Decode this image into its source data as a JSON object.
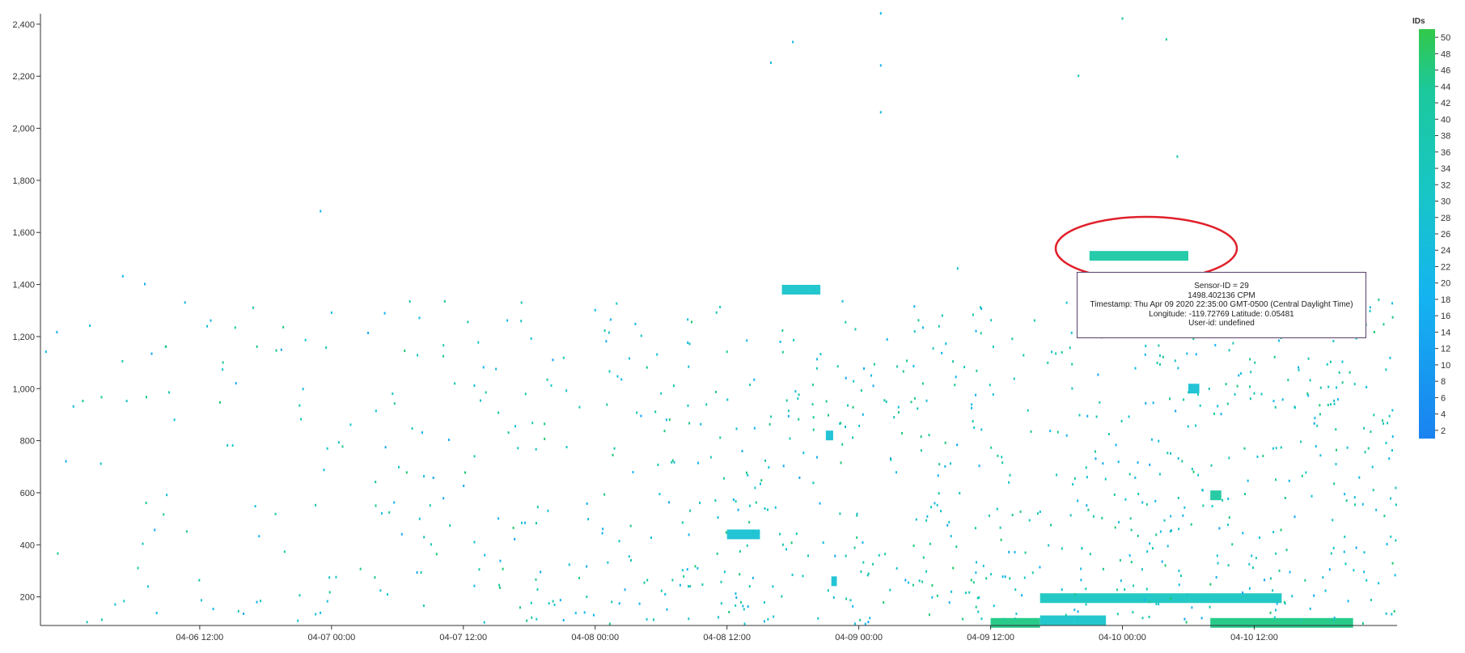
{
  "chart_data": {
    "type": "scatter",
    "title": "",
    "xlabel": "",
    "ylabel": "",
    "x_range": [
      "2020-04-05 21:30",
      "2020-04-11 01:00"
    ],
    "ylim": [
      90,
      2440
    ],
    "y_ticks": [
      200,
      400,
      600,
      800,
      1000,
      1200,
      1400,
      1600,
      1800,
      2000,
      2200,
      2400
    ],
    "y_tick_labels": [
      "200",
      "400",
      "600",
      "800",
      "1,000",
      "1,200",
      "1,400",
      "1,600",
      "1,800",
      "2,000",
      "2,200",
      "2,400"
    ],
    "x_ticks": [
      "2020-04-06 12:00",
      "2020-04-07 00:00",
      "2020-04-07 12:00",
      "2020-04-08 00:00",
      "2020-04-08 12:00",
      "2020-04-09 00:00",
      "2020-04-09 12:00",
      "2020-04-10 00:00",
      "2020-04-10 12:00"
    ],
    "x_tick_labels": [
      "04-06 12:00",
      "04-07 00:00",
      "04-07 12:00",
      "04-08 00:00",
      "04-08 12:00",
      "04-09 00:00",
      "04-09 12:00",
      "04-10 00:00",
      "04-10 12:00"
    ],
    "grid": false,
    "color_scale": {
      "title": "IDs",
      "min": 1,
      "max": 51,
      "colors": [
        "#1a82f0",
        "#14b4f0",
        "#18c6c6",
        "#1cc89c",
        "#20c850",
        "#32c84a"
      ],
      "tick_values": [
        2,
        4,
        6,
        8,
        10,
        12,
        14,
        16,
        18,
        20,
        22,
        24,
        26,
        28,
        30,
        32,
        34,
        36,
        38,
        40,
        42,
        44,
        46,
        48,
        50
      ]
    },
    "points_note_free_scatter": [
      {
        "x": "2020-04-05 22:00",
        "y": 1140,
        "id": 12
      },
      {
        "x": "2020-04-05 23:00",
        "y": 1215,
        "id": 10
      },
      {
        "x": "2020-04-06 00:30",
        "y": 930,
        "id": 14
      },
      {
        "x": "2020-04-06 02:00",
        "y": 1240,
        "id": 16
      },
      {
        "x": "2020-04-06 03:00",
        "y": 710,
        "id": 20
      },
      {
        "x": "2020-04-06 05:00",
        "y": 1430,
        "id": 12
      },
      {
        "x": "2020-04-06 07:00",
        "y": 1400,
        "id": 10
      },
      {
        "x": "2020-04-06 09:00",
        "y": 590,
        "id": 18
      },
      {
        "x": "2020-04-06 13:00",
        "y": 1260,
        "id": 14
      },
      {
        "x": "2020-04-06 15:00",
        "y": 780,
        "id": 22
      },
      {
        "x": "2020-04-06 23:00",
        "y": 1680,
        "id": 12
      },
      {
        "x": "2020-04-07 00:00",
        "y": 1290,
        "id": 16
      },
      {
        "x": "2020-04-07 04:00",
        "y": 640,
        "id": 30
      },
      {
        "x": "2020-04-07 08:00",
        "y": 1270,
        "id": 14
      },
      {
        "x": "2020-04-07 13:00",
        "y": 1010,
        "id": 18
      },
      {
        "x": "2020-04-07 16:00",
        "y": 1260,
        "id": 12
      },
      {
        "x": "2020-04-07 20:00",
        "y": 1010,
        "id": 20
      },
      {
        "x": "2020-04-08 00:00",
        "y": 1300,
        "id": 16
      },
      {
        "x": "2020-04-08 06:00",
        "y": 980,
        "id": 24
      },
      {
        "x": "2020-04-08 12:00",
        "y": 1140,
        "id": 30
      },
      {
        "x": "2020-04-08 16:00",
        "y": 2250,
        "id": 14
      },
      {
        "x": "2020-04-08 18:00",
        "y": 2330,
        "id": 12
      },
      {
        "x": "2020-04-08 20:00",
        "y": 1380,
        "id": 20
      },
      {
        "x": "2020-04-09 02:00",
        "y": 2440,
        "id": 12
      },
      {
        "x": "2020-04-09 02:00",
        "y": 2240,
        "id": 10
      },
      {
        "x": "2020-04-09 02:00",
        "y": 2060,
        "id": 14
      },
      {
        "x": "2020-04-09 09:00",
        "y": 1460,
        "id": 18
      },
      {
        "x": "2020-04-09 16:00",
        "y": 1260,
        "id": 26
      },
      {
        "x": "2020-04-09 20:00",
        "y": 2200,
        "id": 30
      },
      {
        "x": "2020-04-10 00:00",
        "y": 2420,
        "id": 28
      },
      {
        "x": "2020-04-10 04:00",
        "y": 2340,
        "id": 30
      },
      {
        "x": "2020-04-10 05:00",
        "y": 1890,
        "id": 26
      },
      {
        "x": "2020-04-10 12:00",
        "y": 980,
        "id": 28
      },
      {
        "x": "2020-04-10 18:00",
        "y": 900,
        "id": 30
      }
    ],
    "dense_bands": [
      {
        "x_start": "2020-04-08 12:00",
        "x_end": "2020-04-08 15:00",
        "y": 440,
        "id": 18
      },
      {
        "x_start": "2020-04-08 17:00",
        "x_end": "2020-04-08 20:30",
        "y": 1380,
        "id": 20
      },
      {
        "x_start": "2020-04-08 21:00",
        "x_end": "2020-04-08 21:40",
        "y": 820,
        "id": 18
      },
      {
        "x_start": "2020-04-08 21:30",
        "x_end": "2020-04-08 22:00",
        "y": 260,
        "id": 18
      },
      {
        "x_start": "2020-04-09 12:00",
        "x_end": "2020-04-09 16:30",
        "y": 100,
        "id": 34
      },
      {
        "x_start": "2020-04-09 16:30",
        "x_end": "2020-04-09 22:30",
        "y": 110,
        "id": 20
      },
      {
        "x_start": "2020-04-09 16:30",
        "x_end": "2020-04-10 14:30",
        "y": 195,
        "id": 22
      },
      {
        "x_start": "2020-04-09 21:00",
        "x_end": "2020-04-10 06:00",
        "y": 1510,
        "id": 29
      },
      {
        "x_start": "2020-04-10 06:00",
        "x_end": "2020-04-10 07:00",
        "y": 1000,
        "id": 18
      },
      {
        "x_start": "2020-04-10 08:00",
        "x_end": "2020-04-10 09:00",
        "y": 590,
        "id": 30
      },
      {
        "x_start": "2020-04-10 08:00",
        "x_end": "2020-04-10 21:00",
        "y": 100,
        "id": 34
      }
    ],
    "highlight": {
      "x_start": "2020-04-09 19:00",
      "x_end": "2020-04-10 08:30",
      "y_center": 1510
    }
  },
  "tooltip": {
    "line1": "Sensor-ID = 29",
    "line2": "1498.402136 CPM",
    "line3": "Timestamp: Thu Apr 09 2020 22:35:00 GMT-0500 (Central Daylight Time)",
    "line4": "Longitude: -119.72769 Latitude: 0.05481",
    "line5": "User-id: undefined"
  },
  "colors": {
    "highlight_ellipse": "#e0202a",
    "tooltip_border": "#5a3d6b",
    "axis": "#333333"
  }
}
